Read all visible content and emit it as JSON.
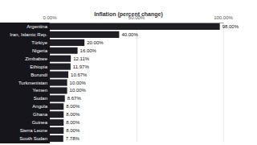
{
  "chart_data": {
    "type": "bar",
    "title": "Inflation (percent change)",
    "orientation": "horizontal",
    "categories": [
      "Argentina",
      "Iran, Islamic Rep.",
      "Türkiye",
      "Nigeria",
      "Zimbabwe",
      "Ethiopia",
      "Burundi",
      "Turkmenistan",
      "Yemen",
      "Sudan",
      "Angola",
      "Ghana",
      "Guinea",
      "Sierra Leone",
      "South Sudan"
    ],
    "values": [
      98.0,
      40.0,
      20.0,
      16.0,
      12.11,
      11.97,
      10.67,
      10.0,
      10.0,
      8.67,
      8.0,
      8.0,
      8.0,
      8.0,
      7.78
    ],
    "value_labels": [
      "98.00%",
      "40.00%",
      "20.00%",
      "16.00%",
      "12.11%",
      "11.97%",
      "10.67%",
      "10.00%",
      "10.00%",
      "8.67%",
      "8.00%",
      "8.00%",
      "8.00%",
      "8.00%",
      "7.78%"
    ],
    "data_labels": true,
    "color": "#1e1e24",
    "xlim": [
      0,
      100
    ],
    "xticks": [
      {
        "value": 0,
        "label": "0.00%"
      },
      {
        "value": 50,
        "label": "50.00%"
      },
      {
        "value": 100,
        "label": "100.00%"
      }
    ],
    "grid": true
  }
}
